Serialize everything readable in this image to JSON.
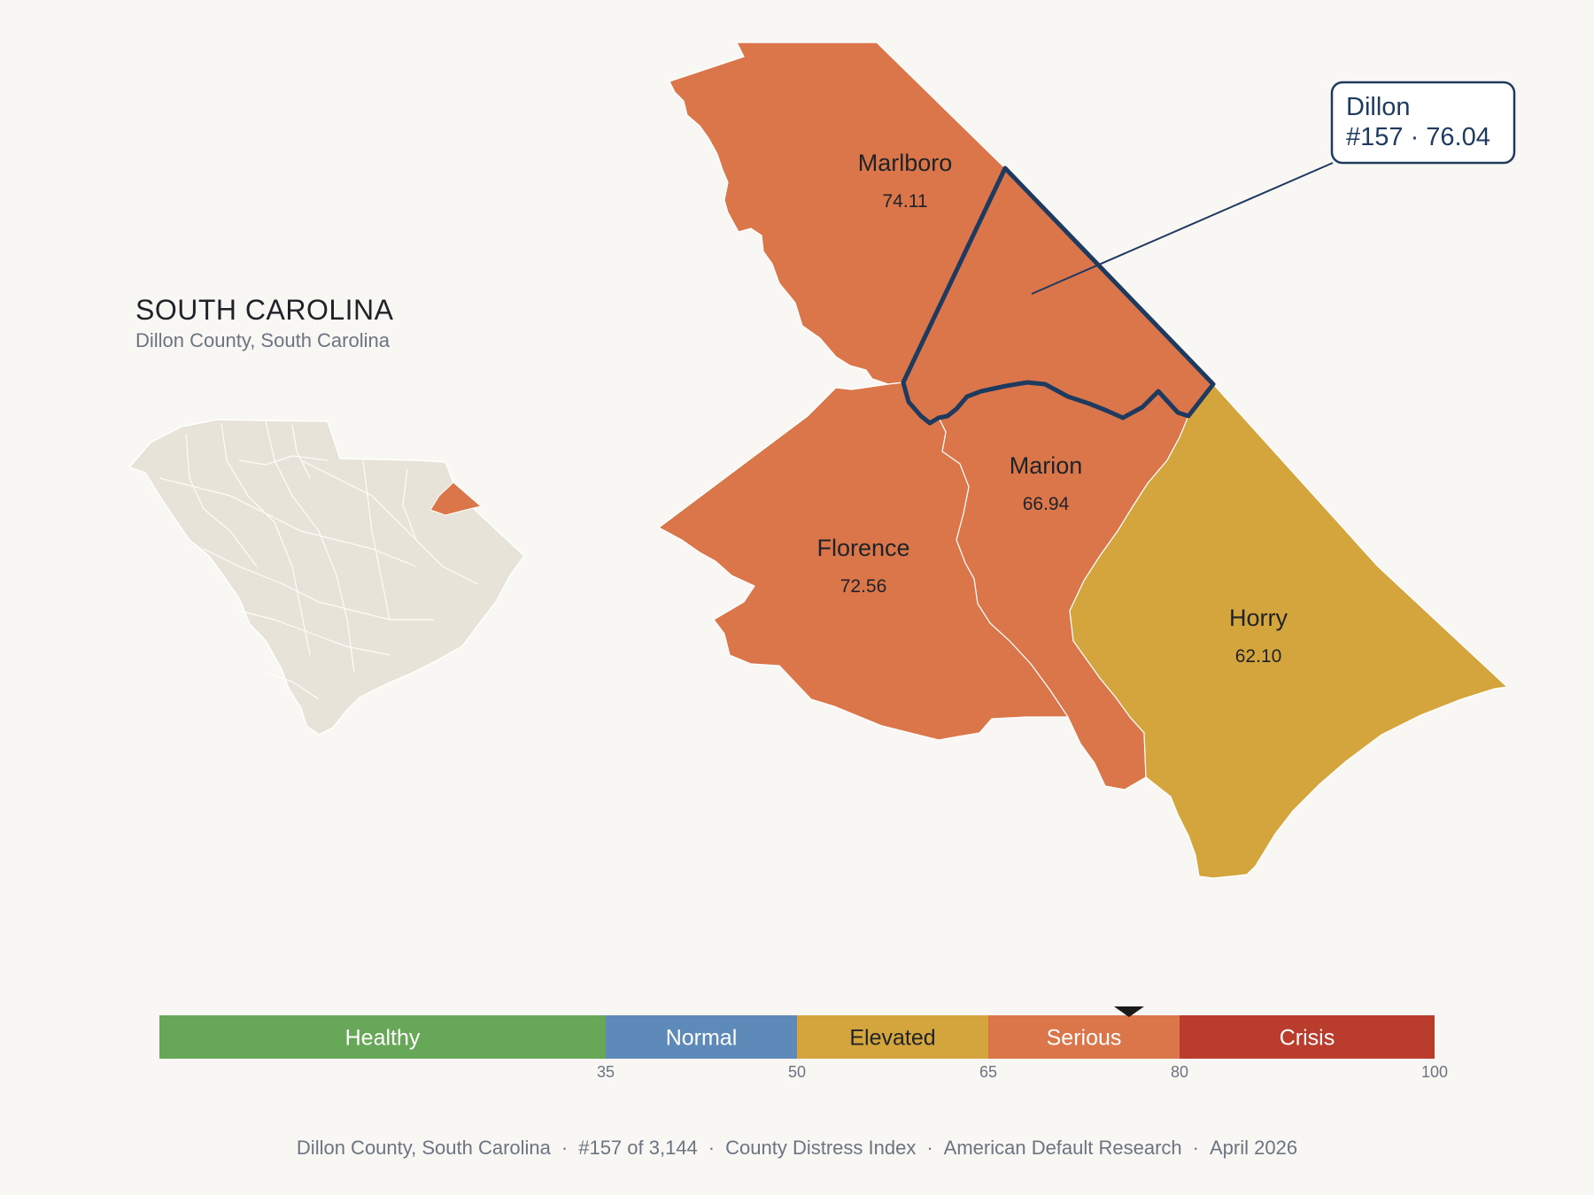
{
  "state": {
    "title": "SOUTH CAROLINA",
    "subtitle": "Dillon County, South Carolina",
    "base_fill": "#e8e3d8",
    "highlight_fill": "#da764a"
  },
  "counties": [
    {
      "id": "marlboro",
      "name": "Marlboro",
      "score": "74.11",
      "fill": "#da764a"
    },
    {
      "id": "dillon",
      "name": "Dillon",
      "score": "76.04",
      "fill": "#da764a",
      "highlight": true
    },
    {
      "id": "marion",
      "name": "Marion",
      "score": "66.94",
      "fill": "#da764a"
    },
    {
      "id": "florence",
      "name": "Florence",
      "score": "72.56",
      "fill": "#da764a"
    },
    {
      "id": "horry",
      "name": "Horry",
      "score": "62.10",
      "fill": "#d4a53c"
    }
  ],
  "callout": {
    "line1": "Dillon",
    "line2": "#157 · 76.04",
    "border_color": "#1f3a5f"
  },
  "legend": {
    "categories": [
      {
        "label": "Healthy",
        "from": 0,
        "to": 35,
        "color": "#67a758",
        "text_color": "#ffffff"
      },
      {
        "label": "Normal",
        "from": 35,
        "to": 50,
        "color": "#5d8ab9",
        "text_color": "#ffffff"
      },
      {
        "label": "Elevated",
        "from": 50,
        "to": 65,
        "color": "#d4a53c",
        "text_color": "#1f2328"
      },
      {
        "label": "Serious",
        "from": 65,
        "to": 80,
        "color": "#da764a",
        "text_color": "#ffffff"
      },
      {
        "label": "Crisis",
        "from": 80,
        "to": 100,
        "color": "#b93c2c",
        "text_color": "#ffffff"
      }
    ],
    "ticks": [
      "35",
      "50",
      "65",
      "80",
      "100"
    ],
    "marker_value": 76.04,
    "marker_color": "#1a1a1a"
  },
  "footer": {
    "items": [
      "Dillon County, South Carolina",
      "#157 of 3,144",
      "County Distress Index",
      "American Default Research",
      "April 2026"
    ],
    "separator": "·"
  }
}
